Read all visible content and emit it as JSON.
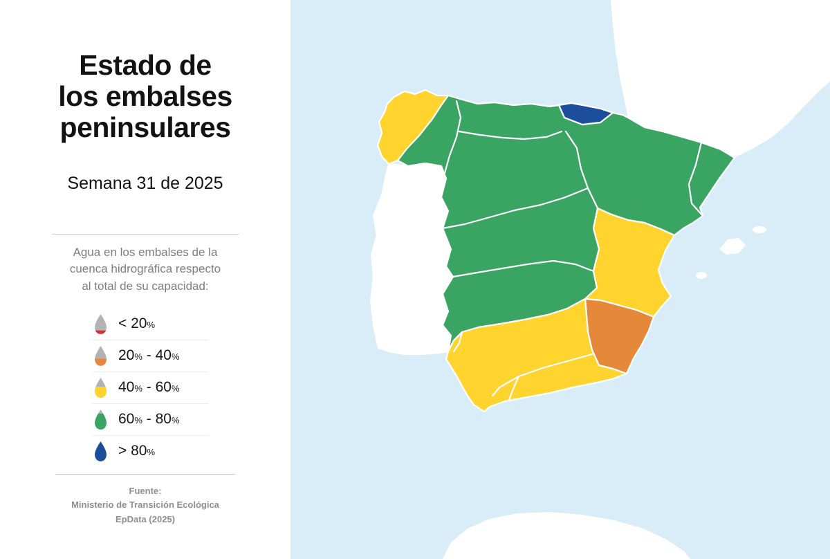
{
  "panel": {
    "title": "Estado de\nlos embalses\npeninsulares",
    "subtitle": "Semana 31 de 2025",
    "description": "Agua en los embalses de la\ncuenca hidrográfica respecto\nal total de su capacidad:",
    "source": {
      "line1": "Fuente:",
      "line2": "Ministerio de Transición Ecológica",
      "line3": "EpData (2025)"
    }
  },
  "legend": {
    "empty_color": "#b3b3b3",
    "items": [
      {
        "label": "< 20%",
        "color": "#d22f38",
        "fill_y": "25.6",
        "fill_h": "5.4"
      },
      {
        "label": "20% - 40%",
        "color": "#e5883a",
        "fill_y": "20.2",
        "fill_h": "10.8"
      },
      {
        "label": "40% - 60%",
        "color": "#ffd42e",
        "fill_y": "14.5",
        "fill_h": "16.5"
      },
      {
        "label": "60% - 80%",
        "color": "#3aa462",
        "fill_y": "7",
        "fill_h": "24"
      },
      {
        "label": "> 80%",
        "color": "#1c4e9c",
        "fill_y": "1",
        "fill_h": "30"
      }
    ]
  },
  "map": {
    "sea_color": "#d9edf8",
    "neighbor_color": "#ffffff",
    "border_color": "#ffffff",
    "regions": {
      "galicia_costa": {
        "color": "#ffd42e",
        "range": "40% - 60%"
      },
      "interior_green": {
        "color": "#3aa462",
        "range": "60% - 80%"
      },
      "cantabrico_oriental": {
        "color": "#1c4e9c",
        "range": "> 80%"
      },
      "jucar": {
        "color": "#ffd42e",
        "range": "40% - 60%"
      },
      "segura": {
        "color": "#e5883a",
        "range": "20% - 40%"
      },
      "sur_andalucia": {
        "color": "#ffd42e",
        "range": "40% - 60%"
      }
    }
  }
}
